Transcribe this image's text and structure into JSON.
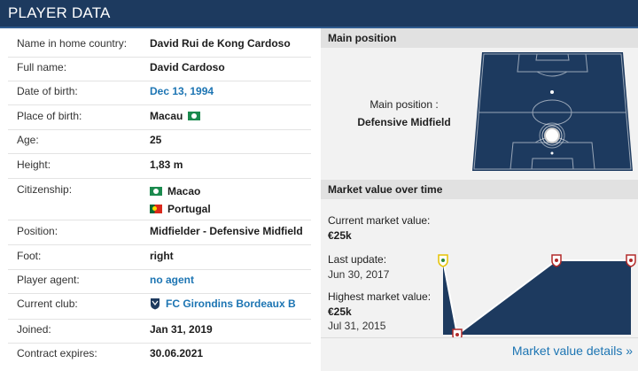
{
  "header": {
    "title": "PLAYER DATA"
  },
  "details": [
    {
      "label": "Name in home country:",
      "value": "David Rui de Kong Cardoso"
    },
    {
      "label": "Full name:",
      "value": "David Cardoso"
    },
    {
      "label": "Date of birth:",
      "value": "Dec 13, 1994"
    },
    {
      "label": "Place of birth:",
      "value": "Macau"
    },
    {
      "label": "Age:",
      "value": "25"
    },
    {
      "label": "Height:",
      "value": "1,83 m"
    },
    {
      "label": "Citizenship:",
      "values": [
        "Macao",
        "Portugal"
      ]
    },
    {
      "label": "Position:",
      "value": "Midfielder - Defensive Midfield"
    },
    {
      "label": "Foot:",
      "value": "right"
    },
    {
      "label": "Player agent:",
      "value": "no agent"
    },
    {
      "label": "Current club:",
      "value": "FC Girondins Bordeaux B"
    },
    {
      "label": "Joined:",
      "value": "Jan 31, 2019"
    },
    {
      "label": "Contract expires:",
      "value": "30.06.2021"
    }
  ],
  "main_position": {
    "title": "Main position",
    "label": "Main position :",
    "value": "Defensive Midfield"
  },
  "market_value": {
    "title": "Market value over time",
    "current_label": "Current market value:",
    "current_value": "€25k",
    "update_label": "Last update:",
    "update_date": "Jun 30, 2017",
    "highest_label": "Highest market value:",
    "highest_value": "€25k",
    "highest_date": "Jul 31, 2015",
    "details_link": "Market value details »"
  },
  "colors": {
    "header": "#1d3a5f",
    "link": "#1d75b3",
    "pitch": "#1d3a5f",
    "chart_fill": "#1d3a5f"
  },
  "chart_data": {
    "type": "area",
    "points": [
      {
        "x": "2015",
        "y": 25
      },
      {
        "x": "2016",
        "y": 0
      },
      {
        "x": "2017",
        "y": 25
      },
      {
        "x": "2019",
        "y": 25
      }
    ],
    "ylim": [
      0,
      25
    ]
  }
}
